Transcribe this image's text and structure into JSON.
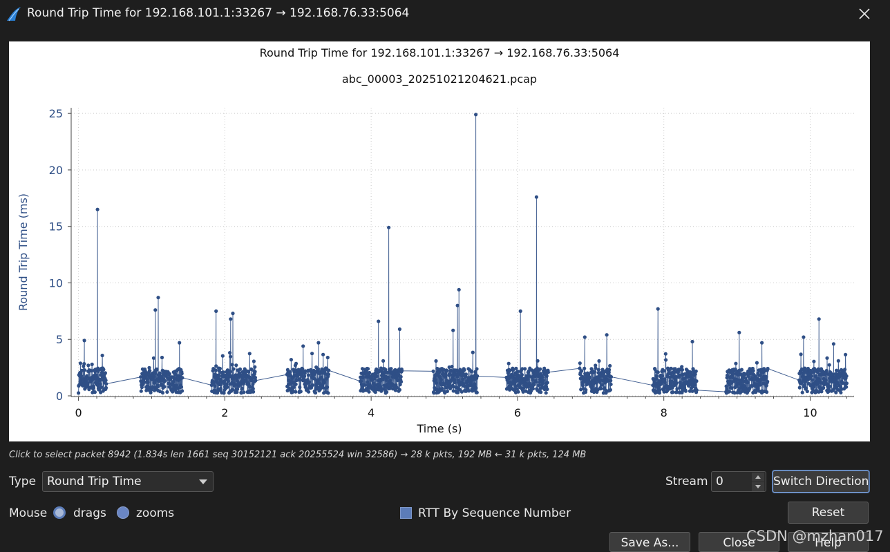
{
  "window": {
    "title": "Round Trip Time for 192.168.101.1:33267 → 192.168.76.33:5064",
    "app_icon": "wireshark-fin-icon",
    "close_icon": "close-icon"
  },
  "colors": {
    "series": "#2f4f86",
    "background": "#1e1e1e",
    "plot_bg": "#ffffff"
  },
  "chart_data": {
    "type": "scatter",
    "title": "Round Trip Time for 192.168.101.1:33267 → 192.168.76.33:5064",
    "subtitle": "abc_00003_20251021204621.pcap",
    "xlabel": "Time (s)",
    "ylabel": "Round Trip Time (ms)",
    "xlim": [
      -0.1,
      10.6
    ],
    "ylim": [
      0,
      25.5
    ],
    "x_ticks": [
      0,
      2,
      4,
      6,
      8,
      10
    ],
    "y_ticks": [
      0,
      5,
      10,
      15,
      20,
      25
    ],
    "grid": true,
    "clusters": [
      {
        "start": 0.0,
        "end": 0.38
      },
      {
        "start": 0.85,
        "end": 1.42
      },
      {
        "start": 1.82,
        "end": 2.42
      },
      {
        "start": 2.85,
        "end": 3.42
      },
      {
        "start": 3.85,
        "end": 4.42
      },
      {
        "start": 4.85,
        "end": 5.45
      },
      {
        "start": 5.85,
        "end": 6.42
      },
      {
        "start": 6.85,
        "end": 7.28
      },
      {
        "start": 7.85,
        "end": 8.45
      },
      {
        "start": 8.85,
        "end": 9.42
      },
      {
        "start": 9.85,
        "end": 10.5
      }
    ],
    "spikes": [
      {
        "x": 0.08,
        "y": 4.9
      },
      {
        "x": 0.26,
        "y": 16.5
      },
      {
        "x": 1.05,
        "y": 7.6
      },
      {
        "x": 1.09,
        "y": 8.7
      },
      {
        "x": 1.38,
        "y": 4.7
      },
      {
        "x": 1.88,
        "y": 7.5
      },
      {
        "x": 2.08,
        "y": 6.8
      },
      {
        "x": 2.11,
        "y": 7.3
      },
      {
        "x": 3.07,
        "y": 4.4
      },
      {
        "x": 3.28,
        "y": 4.7
      },
      {
        "x": 4.1,
        "y": 6.6
      },
      {
        "x": 4.24,
        "y": 14.9
      },
      {
        "x": 4.39,
        "y": 5.9
      },
      {
        "x": 5.18,
        "y": 8.0
      },
      {
        "x": 5.2,
        "y": 9.4
      },
      {
        "x": 5.12,
        "y": 5.8
      },
      {
        "x": 5.43,
        "y": 24.9
      },
      {
        "x": 6.04,
        "y": 7.5
      },
      {
        "x": 6.26,
        "y": 17.6
      },
      {
        "x": 6.92,
        "y": 5.2
      },
      {
        "x": 7.22,
        "y": 5.4
      },
      {
        "x": 7.92,
        "y": 7.7
      },
      {
        "x": 8.39,
        "y": 4.8
      },
      {
        "x": 9.03,
        "y": 5.6
      },
      {
        "x": 9.34,
        "y": 4.7
      },
      {
        "x": 9.91,
        "y": 5.2
      },
      {
        "x": 10.12,
        "y": 6.8
      },
      {
        "x": 10.32,
        "y": 4.6
      }
    ]
  },
  "status": {
    "text": "Click to select packet 8942 (1.834s len 1661 seq 30152121 ack 20255524 win 32586) → 28 k pkts, 192 MB ← 31 k pkts, 124 MB"
  },
  "controls": {
    "type_label": "Type",
    "type_value": "Round Trip Time",
    "stream_label": "Stream",
    "stream_value": "0",
    "switch_direction": "Switch Direction",
    "mouse_label": "Mouse",
    "mouse_drags": "drags",
    "mouse_zooms": "zooms",
    "rtt_by_seq": "RTT By Sequence Number",
    "reset": "Reset",
    "save_as": "Save As...",
    "close": "Close",
    "help": "Help"
  },
  "watermark": "CSDN @mzhan017"
}
